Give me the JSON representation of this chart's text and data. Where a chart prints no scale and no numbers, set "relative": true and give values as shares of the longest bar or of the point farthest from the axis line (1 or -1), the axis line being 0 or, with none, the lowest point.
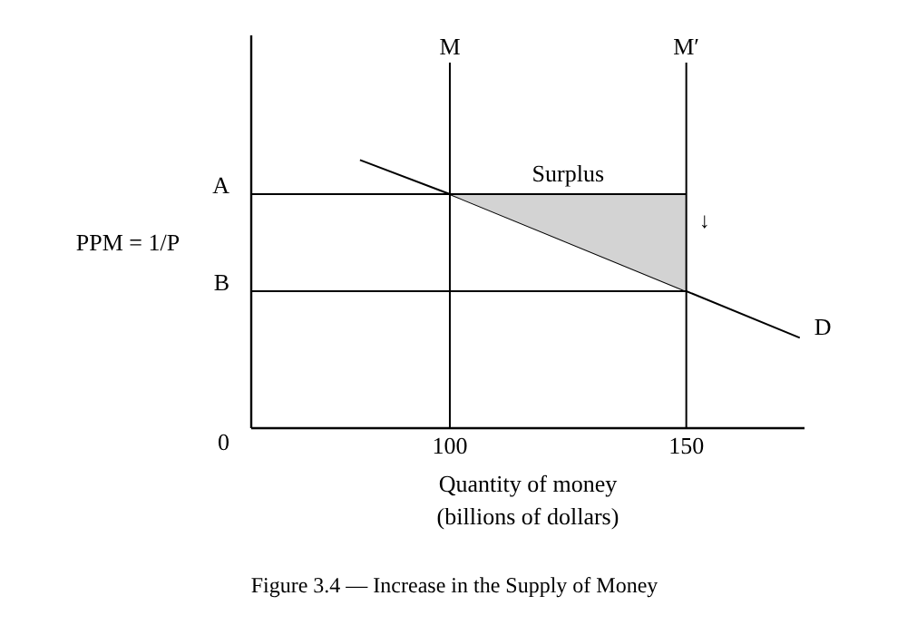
{
  "chart_data": {
    "type": "line",
    "relative": true,
    "title": "Figure 3.4 — Increase in the Supply of Money",
    "xlabel": "Quantity of money\n(billions of dollars)",
    "ylabel": "PPM = 1/P",
    "xlim": [
      58,
      175
    ],
    "xticks": [
      100,
      150
    ],
    "grid": false,
    "marker": "none",
    "line_style": "solid",
    "series": [
      {
        "name": "D",
        "color": "#000000",
        "x": [
          81,
          100,
          150,
          174
        ],
        "values": [
          1,
          0.873,
          0.511,
          0.337
        ]
      },
      {
        "type": "area",
        "color": "#d3d3d3",
        "x": [
          100,
          150
        ],
        "values": [
          0.873,
          0.873
        ]
      }
    ],
    "ref_lines": [
      {
        "axis": "x",
        "value": 100,
        "label": "M",
        "color": "#000000"
      },
      {
        "axis": "x",
        "value": 150,
        "label": "M′",
        "color": "#000000"
      },
      {
        "axis": "y",
        "value": 0.873,
        "label": "A",
        "color": "#000000"
      },
      {
        "axis": "y",
        "value": 0.511,
        "label": "B",
        "color": "#000000"
      }
    ],
    "annotations": [
      "0",
      {
        "text": "Surplus",
        "x": 125,
        "y": 0.873
      },
      "↓"
    ]
  }
}
